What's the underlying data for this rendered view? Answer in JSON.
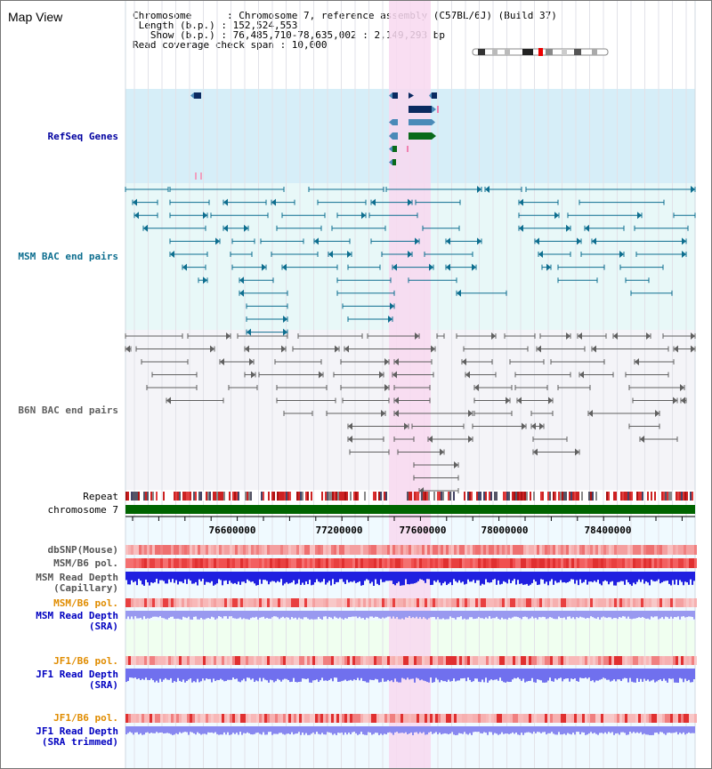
{
  "view": {
    "title": "Map View",
    "info": {
      "chromosome_line": "Chromosome      : Chromosome 7, reference assembly (C57BL/6J) (Build 37)",
      "length_line": " Length (b.p.) : 152,524,553",
      "show_line": "   Show (b.p.) : 76,485,710-78,635,002 : 2,149,293 bp",
      "coverage_line": "Read coverage check span : 10,000"
    }
  },
  "tracks": {
    "refseq": {
      "label": "RefSeq Genes",
      "color": "#0000a0"
    },
    "msm_bac": {
      "label": "MSM BAC end pairs",
      "color": "#0d6e8f"
    },
    "b6n_bac": {
      "label": "B6N BAC end pairs",
      "color": "#606060"
    },
    "repeat": {
      "label": "Repeat"
    },
    "chromosome": {
      "label": "chromosome 7",
      "color": "#006400"
    },
    "ruler": {
      "ticks": [
        "76600000",
        "77200000",
        "77600000",
        "78000000",
        "78400000"
      ]
    },
    "dbsnp": {
      "label": "dbSNP(Mouse)"
    },
    "msm_b6_pol_1": {
      "label": "MSM/B6 pol."
    },
    "msm_depth_cap": {
      "label_1": "MSM Read Depth",
      "label_2": "(Capillary)"
    },
    "msm_b6_pol_2": {
      "label": "MSM/B6 pol.",
      "color": "#e08c00"
    },
    "msm_depth_sra": {
      "label_1": "MSM Read Depth",
      "label_2": "(SRA)",
      "color": "#0000c0"
    },
    "jf1_b6_pol_1": {
      "label": "JF1/B6 pol.",
      "color": "#e08c00"
    },
    "jf1_depth_sra": {
      "label_1": "JF1 Read Depth",
      "label_2": "(SRA)",
      "color": "#0000c0"
    },
    "jf1_b6_pol_2": {
      "label": "JF1/B6 pol.",
      "color": "#e08c00"
    },
    "jf1_depth_trim": {
      "label_1": "JF1 Read Depth",
      "label_2": "(SRA trimmed)",
      "color": "#0000c0"
    }
  },
  "colors": {
    "highlight": "#f8d8f0",
    "refseq_bg": "#d6eef8",
    "bac_bg": "#e8f8f8",
    "dark_gene": "#0a2a60",
    "mid_gene": "#4a8ab8",
    "green_gene": "#0a6a1a"
  }
}
